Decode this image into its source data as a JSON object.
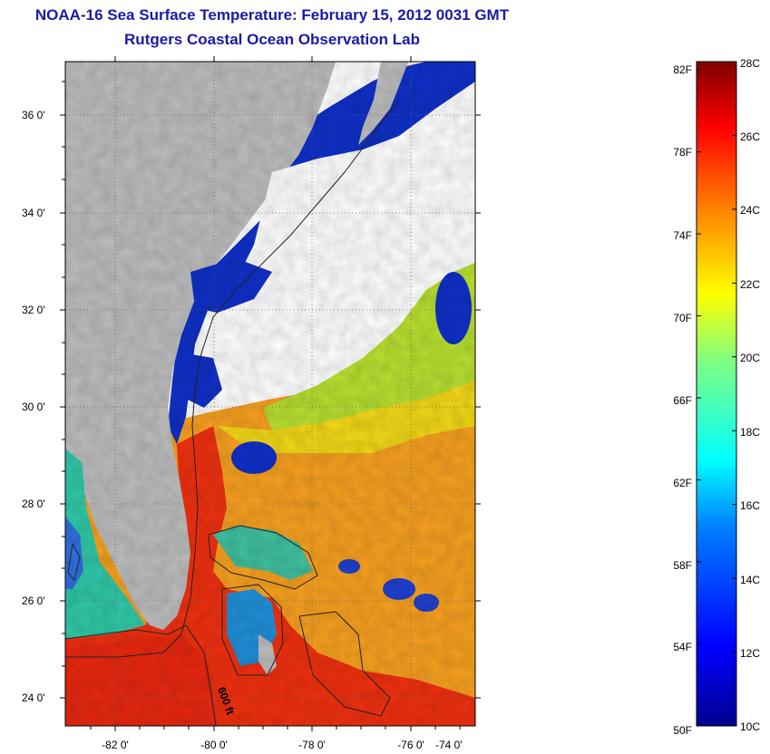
{
  "title": "NOAA-16 Sea Surface Temperature:  February 15, 2012 0031 GMT",
  "subtitle": "Rutgers Coastal Ocean Observation Lab",
  "map": {
    "lat_ticks": [
      "36 0'",
      "34 0'",
      "32 0'",
      "30 0'",
      "28 0'",
      "26 0'",
      "24 0'"
    ],
    "lon_ticks": [
      "-82 0'",
      "-80 0'",
      "-78 0'",
      "-76 0'",
      "-74 0'"
    ],
    "contour_label": "600 ft",
    "colors": {
      "land": "#bdbdbd",
      "cloud": "#ffffff"
    }
  },
  "colorbar": {
    "fahrenheit_labels": [
      "82F",
      "78F",
      "74F",
      "70F",
      "66F",
      "62F",
      "58F",
      "54F",
      "50F"
    ],
    "celsius_labels": [
      "28C",
      "26C",
      "24C",
      "22C",
      "20C",
      "18C",
      "16C",
      "14C",
      "12C",
      "10C"
    ],
    "min_c": 10,
    "max_c": 28
  }
}
